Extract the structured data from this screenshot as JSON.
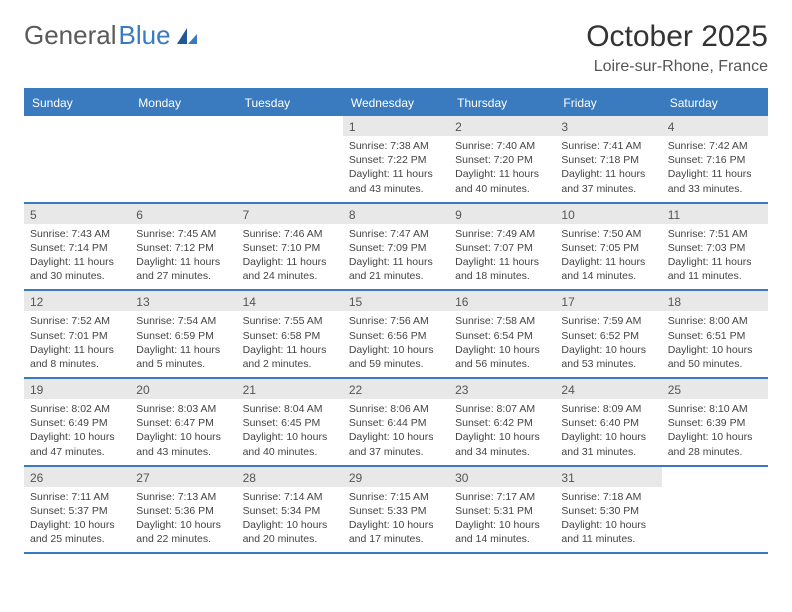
{
  "brand": {
    "part1": "General",
    "part2": "Blue"
  },
  "title": "October 2025",
  "location": "Loire-sur-Rhone, France",
  "colors": {
    "accent": "#3a7bbf",
    "header_bg": "#3a7bbf",
    "header_text": "#ffffff",
    "daynum_bg": "#e8e8e8",
    "body_text": "#444444",
    "page_bg": "#ffffff"
  },
  "typography": {
    "title_fontsize": 30,
    "location_fontsize": 16,
    "dayhead_fontsize": 12,
    "cell_fontsize": 10.5
  },
  "day_names": [
    "Sunday",
    "Monday",
    "Tuesday",
    "Wednesday",
    "Thursday",
    "Friday",
    "Saturday"
  ],
  "weeks": [
    [
      {
        "n": "",
        "sr": "",
        "ss": "",
        "dl": ""
      },
      {
        "n": "",
        "sr": "",
        "ss": "",
        "dl": ""
      },
      {
        "n": "",
        "sr": "",
        "ss": "",
        "dl": ""
      },
      {
        "n": "1",
        "sr": "Sunrise: 7:38 AM",
        "ss": "Sunset: 7:22 PM",
        "dl": "Daylight: 11 hours and 43 minutes."
      },
      {
        "n": "2",
        "sr": "Sunrise: 7:40 AM",
        "ss": "Sunset: 7:20 PM",
        "dl": "Daylight: 11 hours and 40 minutes."
      },
      {
        "n": "3",
        "sr": "Sunrise: 7:41 AM",
        "ss": "Sunset: 7:18 PM",
        "dl": "Daylight: 11 hours and 37 minutes."
      },
      {
        "n": "4",
        "sr": "Sunrise: 7:42 AM",
        "ss": "Sunset: 7:16 PM",
        "dl": "Daylight: 11 hours and 33 minutes."
      }
    ],
    [
      {
        "n": "5",
        "sr": "Sunrise: 7:43 AM",
        "ss": "Sunset: 7:14 PM",
        "dl": "Daylight: 11 hours and 30 minutes."
      },
      {
        "n": "6",
        "sr": "Sunrise: 7:45 AM",
        "ss": "Sunset: 7:12 PM",
        "dl": "Daylight: 11 hours and 27 minutes."
      },
      {
        "n": "7",
        "sr": "Sunrise: 7:46 AM",
        "ss": "Sunset: 7:10 PM",
        "dl": "Daylight: 11 hours and 24 minutes."
      },
      {
        "n": "8",
        "sr": "Sunrise: 7:47 AM",
        "ss": "Sunset: 7:09 PM",
        "dl": "Daylight: 11 hours and 21 minutes."
      },
      {
        "n": "9",
        "sr": "Sunrise: 7:49 AM",
        "ss": "Sunset: 7:07 PM",
        "dl": "Daylight: 11 hours and 18 minutes."
      },
      {
        "n": "10",
        "sr": "Sunrise: 7:50 AM",
        "ss": "Sunset: 7:05 PM",
        "dl": "Daylight: 11 hours and 14 minutes."
      },
      {
        "n": "11",
        "sr": "Sunrise: 7:51 AM",
        "ss": "Sunset: 7:03 PM",
        "dl": "Daylight: 11 hours and 11 minutes."
      }
    ],
    [
      {
        "n": "12",
        "sr": "Sunrise: 7:52 AM",
        "ss": "Sunset: 7:01 PM",
        "dl": "Daylight: 11 hours and 8 minutes."
      },
      {
        "n": "13",
        "sr": "Sunrise: 7:54 AM",
        "ss": "Sunset: 6:59 PM",
        "dl": "Daylight: 11 hours and 5 minutes."
      },
      {
        "n": "14",
        "sr": "Sunrise: 7:55 AM",
        "ss": "Sunset: 6:58 PM",
        "dl": "Daylight: 11 hours and 2 minutes."
      },
      {
        "n": "15",
        "sr": "Sunrise: 7:56 AM",
        "ss": "Sunset: 6:56 PM",
        "dl": "Daylight: 10 hours and 59 minutes."
      },
      {
        "n": "16",
        "sr": "Sunrise: 7:58 AM",
        "ss": "Sunset: 6:54 PM",
        "dl": "Daylight: 10 hours and 56 minutes."
      },
      {
        "n": "17",
        "sr": "Sunrise: 7:59 AM",
        "ss": "Sunset: 6:52 PM",
        "dl": "Daylight: 10 hours and 53 minutes."
      },
      {
        "n": "18",
        "sr": "Sunrise: 8:00 AM",
        "ss": "Sunset: 6:51 PM",
        "dl": "Daylight: 10 hours and 50 minutes."
      }
    ],
    [
      {
        "n": "19",
        "sr": "Sunrise: 8:02 AM",
        "ss": "Sunset: 6:49 PM",
        "dl": "Daylight: 10 hours and 47 minutes."
      },
      {
        "n": "20",
        "sr": "Sunrise: 8:03 AM",
        "ss": "Sunset: 6:47 PM",
        "dl": "Daylight: 10 hours and 43 minutes."
      },
      {
        "n": "21",
        "sr": "Sunrise: 8:04 AM",
        "ss": "Sunset: 6:45 PM",
        "dl": "Daylight: 10 hours and 40 minutes."
      },
      {
        "n": "22",
        "sr": "Sunrise: 8:06 AM",
        "ss": "Sunset: 6:44 PM",
        "dl": "Daylight: 10 hours and 37 minutes."
      },
      {
        "n": "23",
        "sr": "Sunrise: 8:07 AM",
        "ss": "Sunset: 6:42 PM",
        "dl": "Daylight: 10 hours and 34 minutes."
      },
      {
        "n": "24",
        "sr": "Sunrise: 8:09 AM",
        "ss": "Sunset: 6:40 PM",
        "dl": "Daylight: 10 hours and 31 minutes."
      },
      {
        "n": "25",
        "sr": "Sunrise: 8:10 AM",
        "ss": "Sunset: 6:39 PM",
        "dl": "Daylight: 10 hours and 28 minutes."
      }
    ],
    [
      {
        "n": "26",
        "sr": "Sunrise: 7:11 AM",
        "ss": "Sunset: 5:37 PM",
        "dl": "Daylight: 10 hours and 25 minutes."
      },
      {
        "n": "27",
        "sr": "Sunrise: 7:13 AM",
        "ss": "Sunset: 5:36 PM",
        "dl": "Daylight: 10 hours and 22 minutes."
      },
      {
        "n": "28",
        "sr": "Sunrise: 7:14 AM",
        "ss": "Sunset: 5:34 PM",
        "dl": "Daylight: 10 hours and 20 minutes."
      },
      {
        "n": "29",
        "sr": "Sunrise: 7:15 AM",
        "ss": "Sunset: 5:33 PM",
        "dl": "Daylight: 10 hours and 17 minutes."
      },
      {
        "n": "30",
        "sr": "Sunrise: 7:17 AM",
        "ss": "Sunset: 5:31 PM",
        "dl": "Daylight: 10 hours and 14 minutes."
      },
      {
        "n": "31",
        "sr": "Sunrise: 7:18 AM",
        "ss": "Sunset: 5:30 PM",
        "dl": "Daylight: 10 hours and 11 minutes."
      },
      {
        "n": "",
        "sr": "",
        "ss": "",
        "dl": ""
      }
    ]
  ]
}
